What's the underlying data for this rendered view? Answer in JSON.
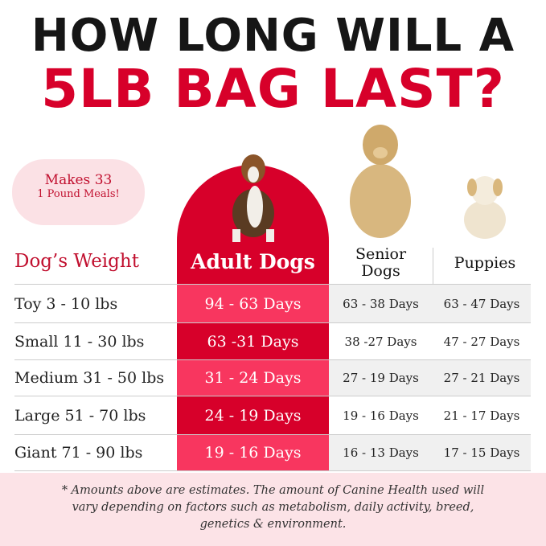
{
  "title": {
    "line1": "HOW LONG WILL A",
    "line2": "5LB BAG LAST?"
  },
  "badge": {
    "line1": "Makes 33",
    "line2": "1 Pound Meals!"
  },
  "headers": {
    "weight": "Dog’s Weight",
    "adult": "Adult Dogs",
    "senior": "Senior Dogs",
    "puppies": "Puppies"
  },
  "colors": {
    "red": "#d7002a",
    "pink": "#f8365f",
    "gray": "#f0f0f0",
    "footer_bg": "#fce3e7"
  },
  "rows": [
    {
      "weight": "Toy 3 - 10 lbs",
      "adult": "94 - 63 Days",
      "senior": "63 - 38 Days",
      "puppies": "63 - 47 Days"
    },
    {
      "weight": "Small 11 - 30 lbs",
      "adult": "63 -31 Days",
      "senior": "38 -27 Days",
      "puppies": "47 - 27 Days"
    },
    {
      "weight": "Medium 31 - 50 lbs",
      "adult": "31 - 24 Days",
      "senior": "27 - 19 Days",
      "puppies": "27 - 21 Days"
    },
    {
      "weight": "Large 51 - 70 lbs",
      "adult": "24 - 19 Days",
      "senior": "19 - 16 Days",
      "puppies": "21 - 17 Days"
    },
    {
      "weight": "Giant 71 - 90 lbs",
      "adult": "19 - 16 Days",
      "senior": "16 - 13 Days",
      "puppies": "17 - 15 Days"
    }
  ],
  "footnote": "* Amounts above are estimates. The amount of Canine Health used will vary depending on factors such as metabolism, daily activity, breed, genetics & environment."
}
